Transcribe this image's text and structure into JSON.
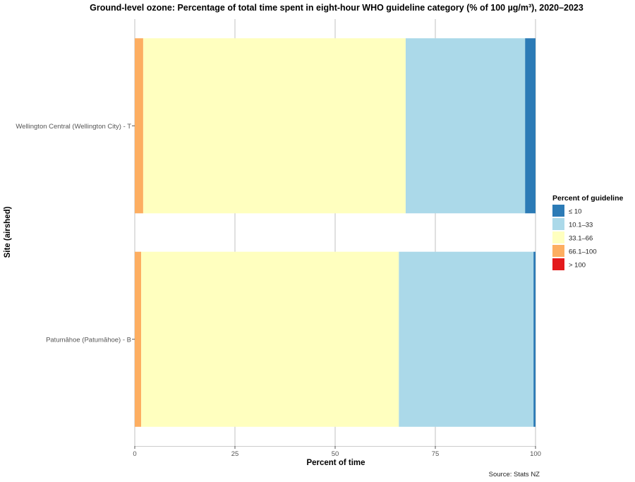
{
  "chart_data": {
    "type": "bar",
    "orientation": "horizontal",
    "stacked": true,
    "title": "Ground-level ozone: Percentage of total time spent in eight-hour WHO guideline category (% of 100 µg/m³), 2020–2023",
    "xlabel": "Percent of time",
    "ylabel": "Site (airshed)",
    "xlim": [
      0,
      100
    ],
    "xticks": [
      "0",
      "25",
      "50",
      "75",
      "100"
    ],
    "categories": [
      "Patumāhoe (Patumāhoe) - B",
      "Wellington Central (Wellington City) - T"
    ],
    "series": [
      {
        "name": "> 100",
        "color": "#e31a1c",
        "values": [
          0,
          0
        ]
      },
      {
        "name": "66.1–100",
        "color": "#fdae61",
        "values": [
          1.6,
          2.1
        ]
      },
      {
        "name": "33.1–66",
        "color": "#ffffbf",
        "values": [
          64.3,
          65.5
        ]
      },
      {
        "name": "10.1–33",
        "color": "#abd9e9",
        "values": [
          33.6,
          29.8
        ]
      },
      {
        "name": "≤ 10",
        "color": "#2c7bb6",
        "values": [
          0.5,
          2.6
        ]
      }
    ],
    "legend": {
      "title": "Percent of guideline",
      "position": "right",
      "order": [
        "≤ 10",
        "10.1–33",
        "33.1–66",
        "66.1–100",
        "> 100"
      ]
    },
    "caption": "Source: Stats NZ",
    "grid": true
  }
}
